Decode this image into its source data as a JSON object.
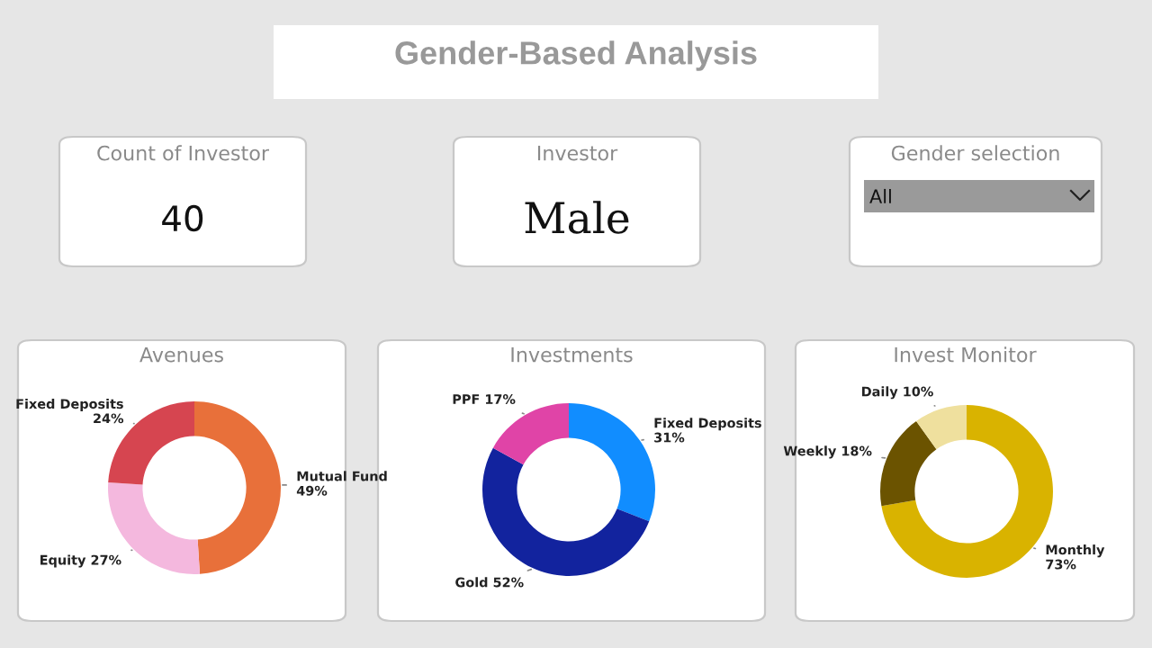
{
  "chart_data": [
    {
      "type": "other",
      "title": "Gender-Based Analysis",
      "annotations": [
        "Count of Investor",
        "40",
        "Investor",
        "Male",
        "Gender selection",
        "All"
      ]
    },
    {
      "type": "donut",
      "title": "Avenues",
      "categories": [
        "Mutual Fund",
        "Equity",
        "Fixed Deposits"
      ],
      "values": [
        49,
        27,
        24
      ],
      "colors": [
        "#e8703a",
        "#f4b8de",
        "#d64550"
      ],
      "value_labels": [
        "49%",
        "27%",
        "24%"
      ]
    },
    {
      "type": "donut",
      "title": "Investments",
      "categories": [
        "Fixed Deposits",
        "Gold",
        "PPF"
      ],
      "values": [
        31,
        52,
        17
      ],
      "colors": [
        "#118dff",
        "#12239e",
        "#e044a7"
      ],
      "value_labels": [
        "31%",
        "52%",
        "17%"
      ]
    },
    {
      "type": "donut",
      "title": "Invest Monitor",
      "categories": [
        "Monthly",
        "Weekly",
        "Daily"
      ],
      "values": [
        73,
        18,
        10
      ],
      "colors": [
        "#d9b300",
        "#6b5300",
        "#efe09e"
      ],
      "value_labels": [
        "73%",
        "18%",
        "10%"
      ]
    }
  ]
}
